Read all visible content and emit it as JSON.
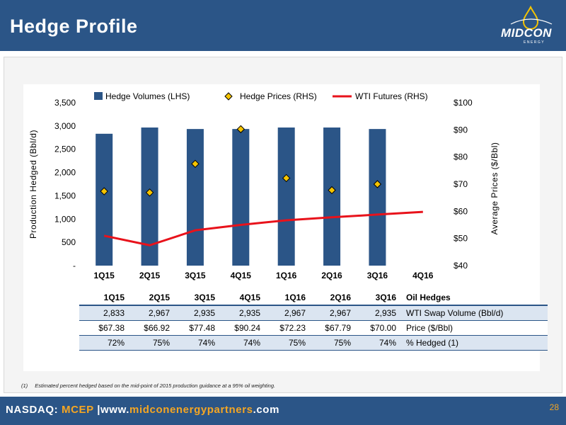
{
  "header": {
    "title": "Hedge Profile",
    "logo_text": "MIDCON",
    "logo_sub": "ENERGY"
  },
  "colors": {
    "navy": "#2b5587",
    "bar": "#2b5587",
    "diamond": "#f5c400",
    "wti_line": "#e8121b",
    "accent": "#f5a623"
  },
  "chart_data": {
    "type": "bar",
    "categories": [
      "1Q15",
      "2Q15",
      "3Q15",
      "4Q15",
      "1Q16",
      "2Q16",
      "3Q16",
      "4Q16"
    ],
    "series": [
      {
        "name": "Hedge Volumes (LHS)",
        "kind": "bar",
        "axis": "left",
        "values": [
          2833,
          2967,
          2935,
          2935,
          2967,
          2967,
          2935,
          null
        ]
      },
      {
        "name": "Hedge Prices (RHS)",
        "kind": "marker",
        "axis": "right",
        "values": [
          67.38,
          66.92,
          77.48,
          90.24,
          72.23,
          67.79,
          70.0,
          null
        ]
      },
      {
        "name": "WTI Futures (RHS)",
        "kind": "line",
        "axis": "right",
        "values": [
          51,
          47.5,
          53,
          55,
          56.7,
          57.8,
          58.8,
          59.8
        ]
      }
    ],
    "ylabel": "Production Hedged (Bbl/d)",
    "y2label": "Average Prices ($/Bbl)",
    "ylim": [
      0,
      3500
    ],
    "y2lim": [
      40,
      100
    ],
    "yticks": [
      "-",
      "500",
      "1,000",
      "1,500",
      "2,000",
      "2,500",
      "3,000",
      "3,500"
    ],
    "y2ticks": [
      "$40",
      "$50",
      "$60",
      "$70",
      "$80",
      "$90",
      "$100"
    ],
    "grid": false,
    "legend": "top"
  },
  "table": {
    "headers": [
      "1Q15",
      "2Q15",
      "3Q15",
      "4Q15",
      "1Q16",
      "2Q16",
      "3Q16"
    ],
    "header_label": "Oil Hedges",
    "rows": [
      {
        "label": "WTI Swap Volume (Bbl/d)",
        "values": [
          "2,833",
          "2,967",
          "2,935",
          "2,935",
          "2,967",
          "2,967",
          "2,935"
        ]
      },
      {
        "label": "Price ($/Bbl)",
        "values": [
          "$67.38",
          "$66.92",
          "$77.48",
          "$90.24",
          "$72.23",
          "$67.79",
          "$70.00"
        ]
      },
      {
        "label": "% Hedged (1)",
        "values": [
          "72%",
          "75%",
          "74%",
          "74%",
          "75%",
          "75%",
          "74%"
        ]
      }
    ]
  },
  "footnote": {
    "num": "(1)",
    "text": "Estimated percent hedged based on the mid-point of 2015 production guidance at a 95% oil weighting."
  },
  "footer": {
    "exchange": "NASDAQ:",
    "ticker": "MCEP",
    "sep": "|",
    "url_prefix": "www.",
    "url_main": "midconenergypartners",
    "url_suffix": ".com",
    "page": "28"
  }
}
